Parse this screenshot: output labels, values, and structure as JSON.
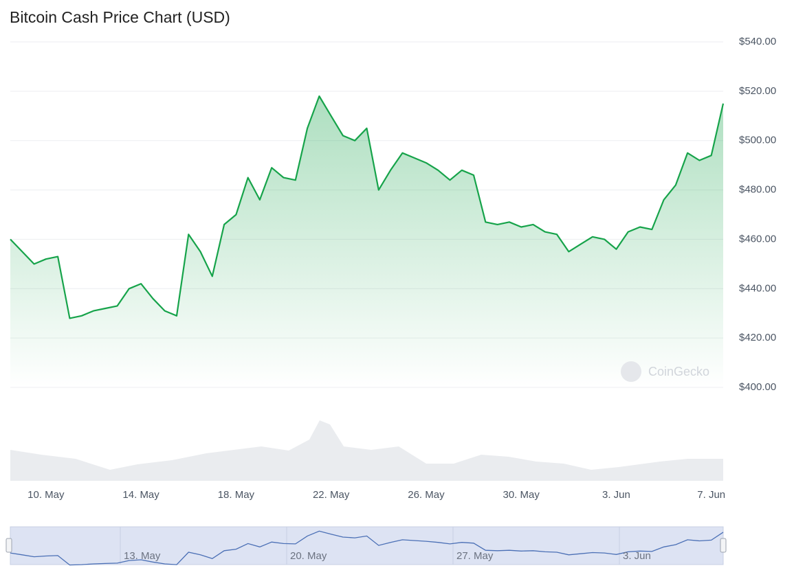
{
  "chart_data": {
    "type": "line",
    "title": "Bitcoin Cash Price Chart (USD)",
    "watermark": "CoinGecko",
    "categories": [
      null,
      null,
      null,
      "10. May",
      null,
      null,
      null,
      null,
      null,
      null,
      null,
      "14. May",
      null,
      null,
      null,
      null,
      null,
      null,
      null,
      "18. May",
      null,
      null,
      null,
      null,
      null,
      null,
      null,
      "22. May",
      null,
      null,
      null,
      null,
      null,
      null,
      null,
      "26. May",
      null,
      null,
      null,
      null,
      null,
      null,
      null,
      "30. May",
      null,
      null,
      null,
      null,
      null,
      null,
      null,
      "3. Jun",
      null,
      null,
      null,
      null,
      null,
      null,
      null,
      "7. Jun",
      null
    ],
    "series": [
      {
        "color": "#16a34a",
        "values": [
          460,
          455,
          450,
          452,
          453,
          428,
          429,
          431,
          432,
          433,
          440,
          442,
          436,
          431,
          429,
          462,
          455,
          445,
          466,
          470,
          485,
          476,
          489,
          485,
          484,
          505,
          518,
          510,
          502,
          500,
          505,
          480,
          488,
          495,
          493,
          491,
          488,
          484,
          488,
          486,
          467,
          466,
          467,
          465,
          466,
          463,
          462,
          455,
          458,
          461,
          460,
          456,
          463,
          465,
          464,
          476,
          482,
          495,
          492,
          494,
          515
        ]
      }
    ],
    "ylim": [
      400,
      540
    ],
    "yticks": [
      {
        "value": 400,
        "label": "$400.00"
      },
      {
        "value": 420,
        "label": "$420.00"
      },
      {
        "value": 440,
        "label": "$440.00"
      },
      {
        "value": 460,
        "label": "$460.00"
      },
      {
        "value": 480,
        "label": "$480.00"
      },
      {
        "value": 500,
        "label": "$500.00"
      },
      {
        "value": 520,
        "label": "$520.00"
      },
      {
        "value": 540,
        "label": "$540.00"
      }
    ],
    "grid": true,
    "navigator": {
      "labels": [
        "13. May",
        "20. May",
        "27. May",
        "3. Jun"
      ]
    }
  }
}
